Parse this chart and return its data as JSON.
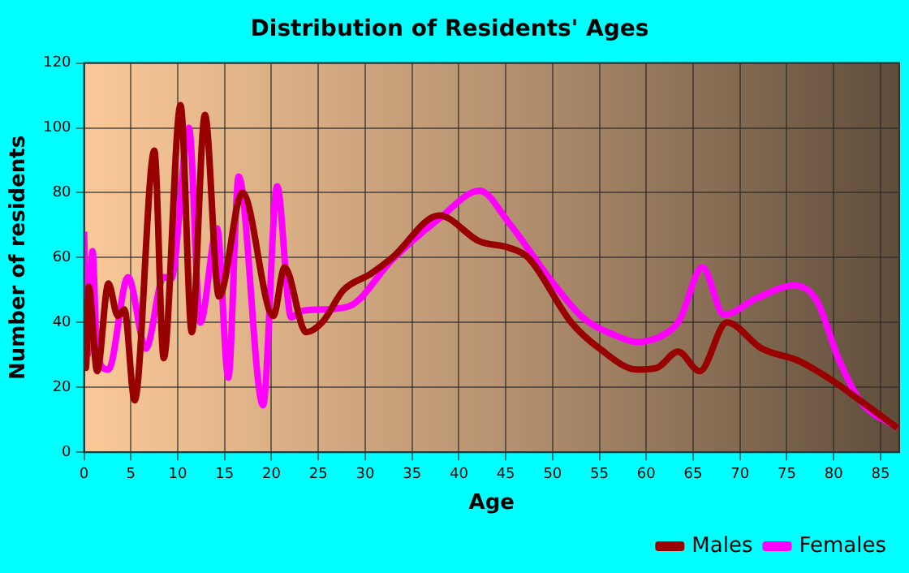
{
  "chart_data": {
    "type": "line",
    "title": "Distribution of Residents' Ages",
    "xlabel": "Age",
    "ylabel": "Number of residents",
    "xlim": [
      0,
      87
    ],
    "xticks": [
      0,
      5,
      10,
      15,
      20,
      25,
      30,
      35,
      40,
      45,
      50,
      55,
      60,
      65,
      70,
      75,
      80,
      85
    ],
    "ylim": [
      0,
      120
    ],
    "yticks": [
      0,
      20,
      40,
      60,
      80,
      100,
      120
    ],
    "grid": true,
    "legend": "bottom right",
    "marker": "none",
    "line_style": "solid",
    "series": [
      {
        "name": "Males",
        "color": "#990000",
        "x": [
          0,
          0.2,
          0.5,
          1.4,
          2.6,
          3.6,
          4.3,
          5.4,
          7.5,
          8.5,
          10.3,
          11.5,
          12.9,
          14.4,
          16.9,
          20.2,
          21.4,
          23.7,
          25.4,
          27.7,
          30.6,
          32.9,
          37.9,
          42.2,
          45.4,
          47.4,
          52,
          55,
          59,
          61.1,
          63.4,
          65.7,
          68.6,
          72.3,
          76.4,
          79.9,
          82.8,
          86.8
        ],
        "values": [
          47,
          26,
          51,
          25,
          52,
          42,
          44,
          16,
          93,
          29,
          107,
          37,
          104,
          48,
          80,
          42,
          57,
          37,
          40,
          50,
          55,
          60,
          73,
          65,
          63,
          60,
          40,
          32,
          25.5,
          26,
          31,
          25,
          40,
          32,
          28,
          22,
          16,
          7.5
        ]
      },
      {
        "name": "Females",
        "color": "#ff00ff",
        "x": [
          0,
          0.4,
          0.9,
          1.4,
          2.6,
          4.7,
          6.6,
          8.5,
          9.3,
          11.2,
          12.4,
          14.2,
          15.4,
          16.5,
          19.1,
          20.6,
          22.1,
          23.3,
          25.4,
          28.3,
          32.9,
          37.9,
          42.2,
          45.4,
          49.7,
          53.2,
          56.7,
          59,
          62.5,
          63.6,
          66,
          68.3,
          71.8,
          75.8,
          78.2,
          80.5,
          82.8,
          86.8
        ],
        "values": [
          68,
          30,
          62,
          30,
          25.5,
          54,
          32,
          54,
          53.5,
          100,
          40,
          69,
          23,
          85,
          14.5,
          82,
          41.6,
          43.6,
          44,
          45,
          59.4,
          72,
          80.6,
          70.5,
          53.5,
          41.6,
          36,
          34,
          37.4,
          41,
          57,
          42.4,
          47.5,
          51.4,
          46.7,
          29,
          16,
          7.5
        ]
      }
    ]
  }
}
